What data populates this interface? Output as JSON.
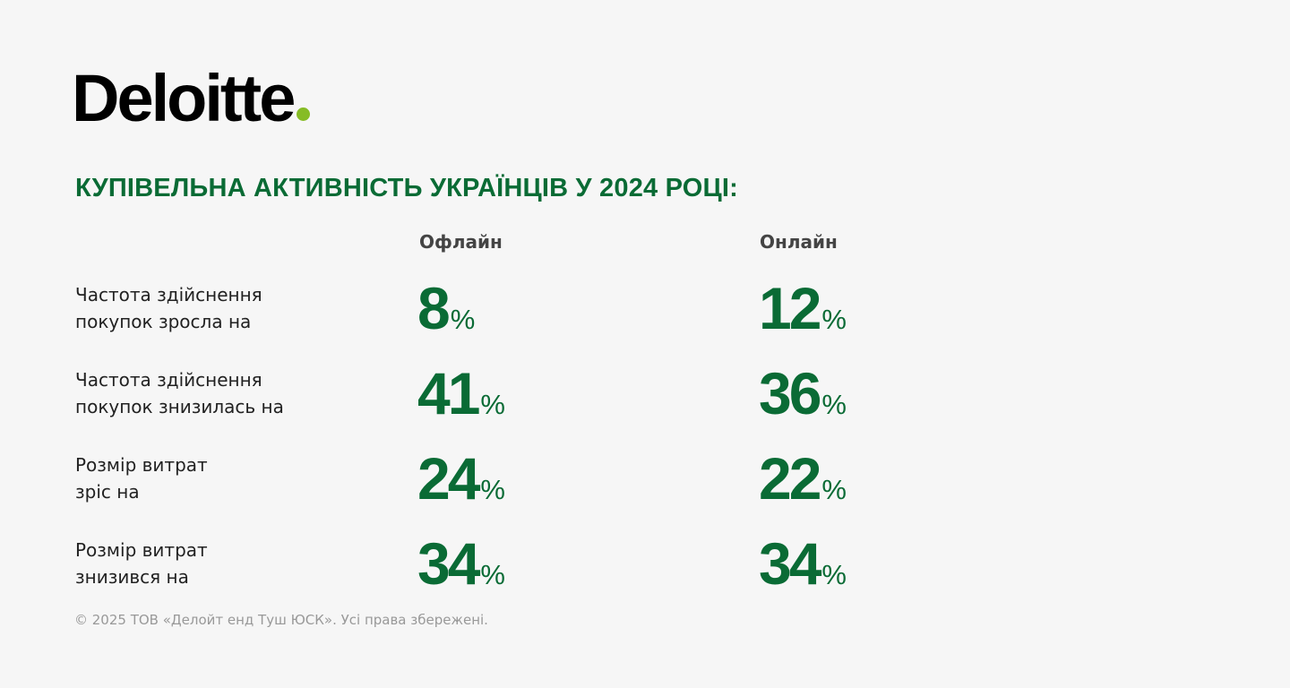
{
  "logo": {
    "text": "Deloitte",
    "accent_color": "#86bc25"
  },
  "title": "КУПІВЕЛЬНА АКТИВНІСТЬ УКРАЇНЦІВ У 2024 РОЦІ:",
  "columns": [
    "Офлайн",
    "Онлайн"
  ],
  "rows": [
    {
      "label_line1": "Частота здійснення",
      "label_line2": "покупок зросла на",
      "offline": "8",
      "online": "12"
    },
    {
      "label_line1": "Частота здійснення",
      "label_line2": "покупок знизилась на",
      "offline": "41",
      "online": "36"
    },
    {
      "label_line1": "Розмір витрат",
      "label_line2": "зріс на",
      "offline": "24",
      "online": "22"
    },
    {
      "label_line1": "Розмір витрат",
      "label_line2": "знизився на",
      "offline": "34",
      "online": "34"
    }
  ],
  "percent_sign": "%",
  "footer": "© 2025 ТОВ «Делойт енд Туш ЮСК». Усі права збережені.",
  "colors": {
    "green": "#0a6b35",
    "background": "#f6f6f6"
  }
}
